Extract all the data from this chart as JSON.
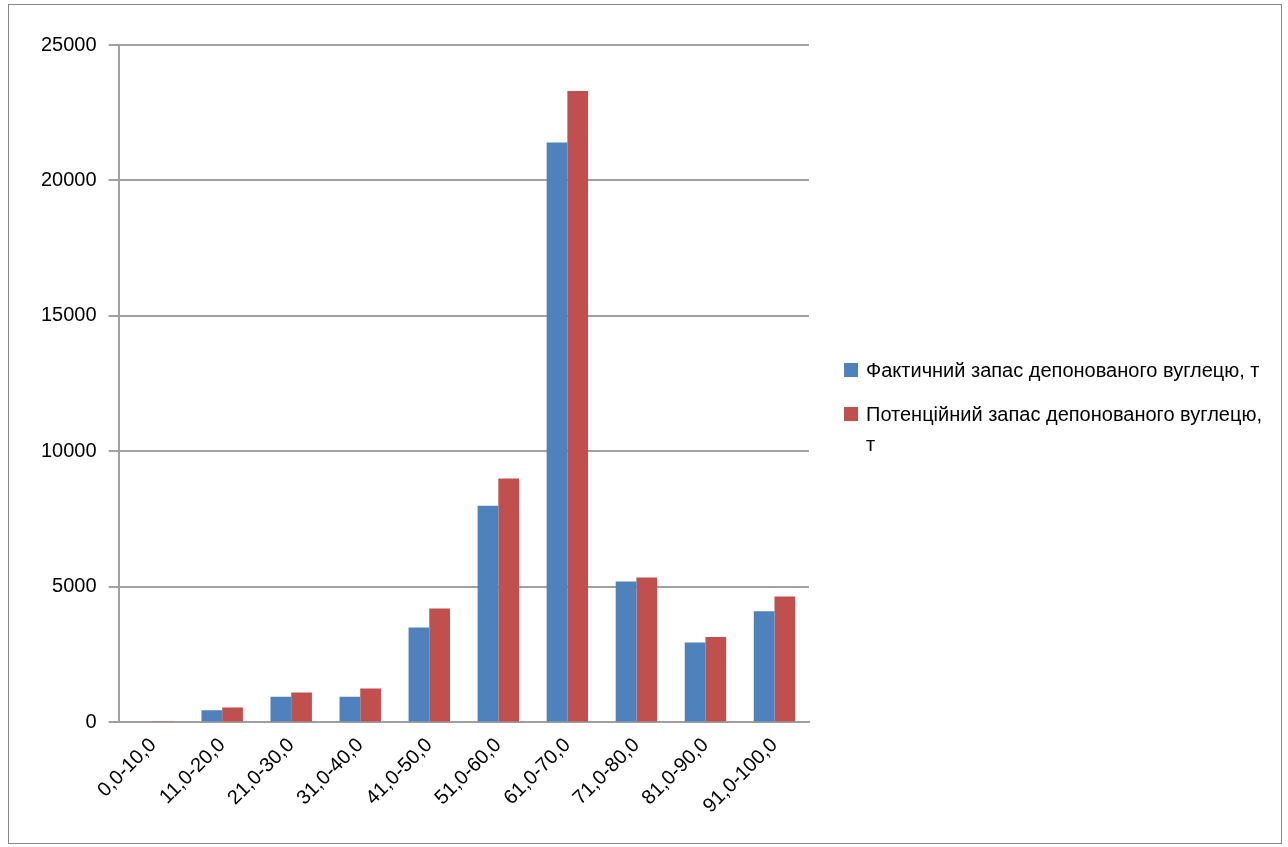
{
  "chart_data": {
    "type": "bar",
    "categories": [
      "0,0-10,0",
      "11,0-20,0",
      "21,0-30,0",
      "31,0-40,0",
      "41,0-50,0",
      "51,0-60,0",
      "61,0-70,0",
      "71,0-80,0",
      "81,0-90,0",
      "91,0-100,0"
    ],
    "series": [
      {
        "name": "Фактичний запас депонованого вуглецю, т",
        "color": "#4f81bd",
        "values": [
          30,
          450,
          950,
          950,
          3500,
          8000,
          21400,
          5200,
          2950,
          4100
        ]
      },
      {
        "name": "Потенційний запас депонованого вуглецю, т",
        "color": "#c0504d",
        "values": [
          20,
          550,
          1100,
          1250,
          4200,
          9000,
          23300,
          5350,
          3150,
          4650
        ]
      }
    ],
    "ylim": [
      0,
      25000
    ],
    "yticks": [
      0,
      5000,
      10000,
      15000,
      20000,
      25000
    ],
    "grid": "y",
    "legend": "right"
  }
}
